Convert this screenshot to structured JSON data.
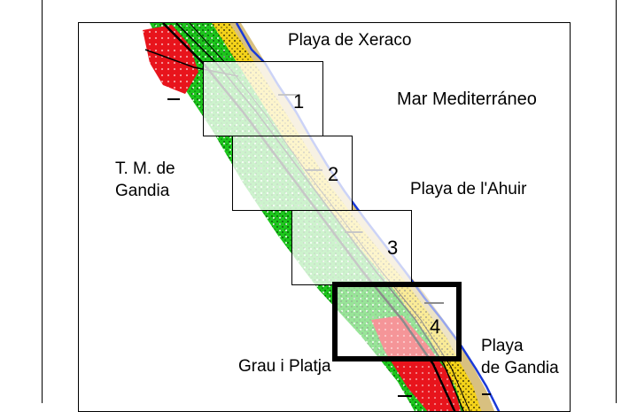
{
  "labels": {
    "xeraco": "Playa de Xeraco",
    "sea": "Mar Mediterráneo",
    "municipality": "T. M. de\nGandia",
    "ahuir": "Playa de l'Ahuir",
    "grau": "Grau i Platja",
    "gandia": "Playa\nde Gandia"
  },
  "sheets": [
    {
      "number": "1",
      "selected": false
    },
    {
      "number": "2",
      "selected": false
    },
    {
      "number": "3",
      "selected": false
    },
    {
      "number": "4",
      "selected": true
    }
  ],
  "colors": {
    "green": "#1cc61c",
    "yellow": "#f4d21a",
    "red": "#e8141c",
    "coastline": "#1a3ad8",
    "tan": "#d8c080"
  }
}
